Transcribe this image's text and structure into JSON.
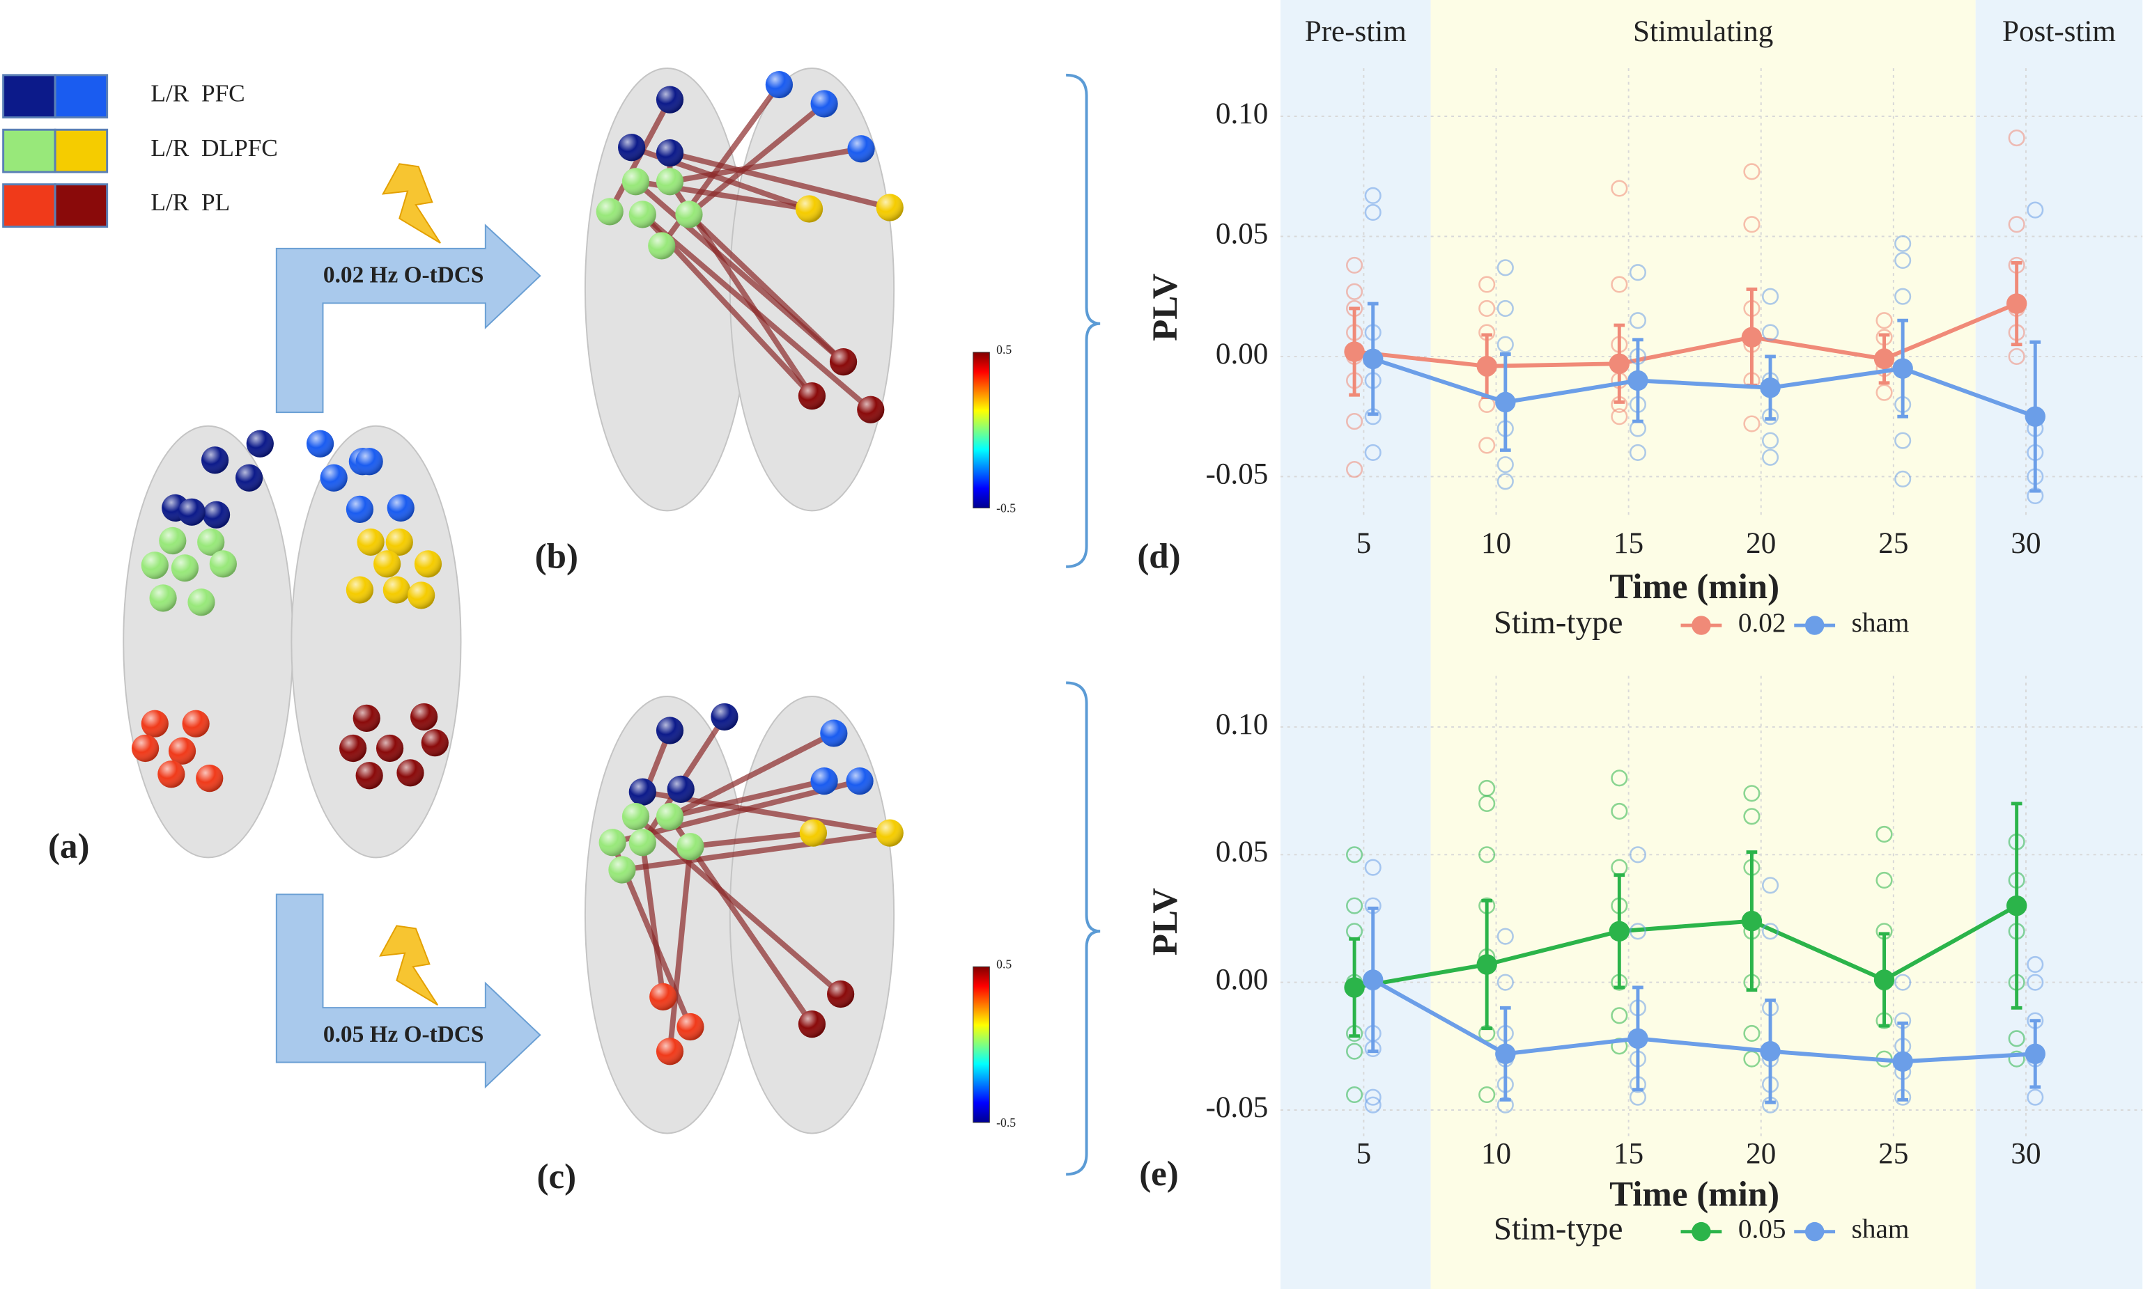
{
  "figure": {
    "legend": [
      {
        "label": "L/R  PFC",
        "colors": [
          "#0c1a8a",
          "#1a5cf0"
        ]
      },
      {
        "label": "L/R  DLPFC",
        "colors": [
          "#98e87a",
          "#f5cc00"
        ]
      },
      {
        "label": "L/R  PL",
        "colors": [
          "#f03a1a",
          "#8a0a0a"
        ]
      }
    ],
    "panels": {
      "a": "(a)",
      "b": "(b)",
      "c": "(c)"
    },
    "arrows": [
      "0.02 Hz O-tDCS",
      "0.05 Hz O-tDCS"
    ],
    "colorbar_ticks": [
      0.5,
      -0.5
    ]
  },
  "chart_data": [
    {
      "type": "line",
      "panel": "(d)",
      "ylabel": "PLV",
      "xlabel": "Time (min)",
      "legend_title": "Stim-type",
      "grid": true,
      "x": [
        5,
        10,
        15,
        20,
        25,
        30
      ],
      "xlim": [
        1.86,
        34.4
      ],
      "xticks": [
        5,
        10,
        15,
        20,
        25,
        30
      ],
      "ylim": [
        -0.0676,
        0.12
      ],
      "yticks": [
        {
          "value": 0.1,
          "label": "0.10"
        },
        0.05,
        {
          "value": 0,
          "label": "0.00"
        },
        -0.05
      ],
      "bands": [
        {
          "label": "Pre-stim",
          "from": 1.86,
          "to": 7.53,
          "color": "#e9f3fb"
        },
        {
          "label": "Stimulating",
          "from": 7.53,
          "to": 28.1,
          "color": "#fdfde6"
        },
        {
          "label": "Post-stim",
          "from": 28.1,
          "to": 34.4,
          "color": "#e9f3fb"
        }
      ],
      "series": [
        {
          "name": "0.02",
          "color": "#f08a78",
          "values": [
            0.002,
            -0.004,
            -0.003,
            0.008,
            -0.001,
            0.022
          ],
          "errors": [
            0.018,
            0.013,
            0.016,
            0.02,
            0.01,
            0.017
          ],
          "points": [
            [
              0.038,
              0.027,
              0.02,
              0.01,
              0.0,
              -0.01,
              -0.027,
              -0.047
            ],
            [
              0.03,
              0.02,
              0.01,
              -0.005,
              -0.02,
              -0.037
            ],
            [
              0.07,
              0.03,
              0.005,
              -0.01,
              -0.02,
              -0.025
            ],
            [
              0.077,
              0.055,
              0.02,
              0.005,
              -0.01,
              -0.028
            ],
            [
              0.015,
              0.008,
              0.0,
              -0.005,
              -0.015
            ],
            [
              0.091,
              0.055,
              0.038,
              0.02,
              0.01,
              0.0
            ]
          ]
        },
        {
          "name": "sham",
          "color": "#6b9ee8",
          "values": [
            -0.001,
            -0.019,
            -0.01,
            -0.013,
            -0.005,
            -0.025
          ],
          "errors": [
            0.023,
            0.02,
            0.017,
            0.013,
            0.02,
            0.031
          ],
          "points": [
            [
              0.067,
              0.06,
              0.01,
              -0.01,
              -0.025,
              -0.04
            ],
            [
              0.037,
              0.02,
              0.005,
              -0.03,
              -0.045,
              -0.052
            ],
            [
              0.035,
              0.015,
              0.0,
              -0.02,
              -0.03,
              -0.04
            ],
            [
              0.025,
              0.01,
              -0.01,
              -0.025,
              -0.035,
              -0.042
            ],
            [
              0.047,
              0.04,
              0.025,
              -0.02,
              -0.035,
              -0.051
            ],
            [
              0.061,
              -0.03,
              -0.04,
              -0.05,
              -0.058
            ]
          ]
        }
      ]
    },
    {
      "type": "line",
      "panel": "(e)",
      "ylabel": "PLV",
      "xlabel": "Time (min)",
      "legend_title": "Stim-type",
      "grid": true,
      "x": [
        5,
        10,
        15,
        20,
        25,
        30
      ],
      "xlim": [
        1.86,
        34.4
      ],
      "xticks": [
        5,
        10,
        15,
        20,
        25,
        30
      ],
      "ylim": [
        -0.0618,
        0.12
      ],
      "yticks": [
        {
          "value": 0.1,
          "label": "0.10"
        },
        0.05,
        {
          "value": 0,
          "label": "0.00"
        },
        -0.05
      ],
      "series": [
        {
          "name": "0.05",
          "color": "#2bb44a",
          "values": [
            -0.002,
            0.007,
            0.02,
            0.024,
            0.001,
            0.03
          ],
          "errors": [
            0.019,
            0.025,
            0.022,
            0.027,
            0.018,
            0.04
          ],
          "points": [
            [
              0.05,
              0.03,
              0.02,
              0.0,
              -0.02,
              -0.027,
              -0.044
            ],
            [
              0.076,
              0.07,
              0.05,
              0.03,
              0.01,
              -0.02,
              -0.044
            ],
            [
              0.08,
              0.067,
              0.045,
              0.03,
              0.0,
              -0.013,
              -0.025
            ],
            [
              0.074,
              0.065,
              0.045,
              0.02,
              0.0,
              -0.02,
              -0.03
            ],
            [
              0.058,
              0.04,
              0.02,
              0.0,
              -0.015,
              -0.03
            ],
            [
              0.055,
              0.04,
              0.02,
              0.0,
              -0.022,
              -0.03
            ]
          ]
        },
        {
          "name": "sham",
          "color": "#6b9ee8",
          "values": [
            0.001,
            -0.028,
            -0.022,
            -0.027,
            -0.031,
            -0.028
          ],
          "errors": [
            0.028,
            0.018,
            0.02,
            0.02,
            0.015,
            0.013
          ],
          "points": [
            [
              0.045,
              0.03,
              0.0,
              -0.02,
              -0.026,
              -0.045,
              -0.048
            ],
            [
              0.018,
              0.0,
              -0.02,
              -0.03,
              -0.04,
              -0.048
            ],
            [
              0.05,
              0.02,
              -0.01,
              -0.03,
              -0.04,
              -0.045
            ],
            [
              0.038,
              0.02,
              -0.01,
              -0.03,
              -0.04,
              -0.048
            ],
            [
              0.0,
              -0.015,
              -0.025,
              -0.035,
              -0.045
            ],
            [
              0.007,
              0.0,
              -0.015,
              -0.03,
              -0.045
            ]
          ]
        }
      ]
    }
  ]
}
